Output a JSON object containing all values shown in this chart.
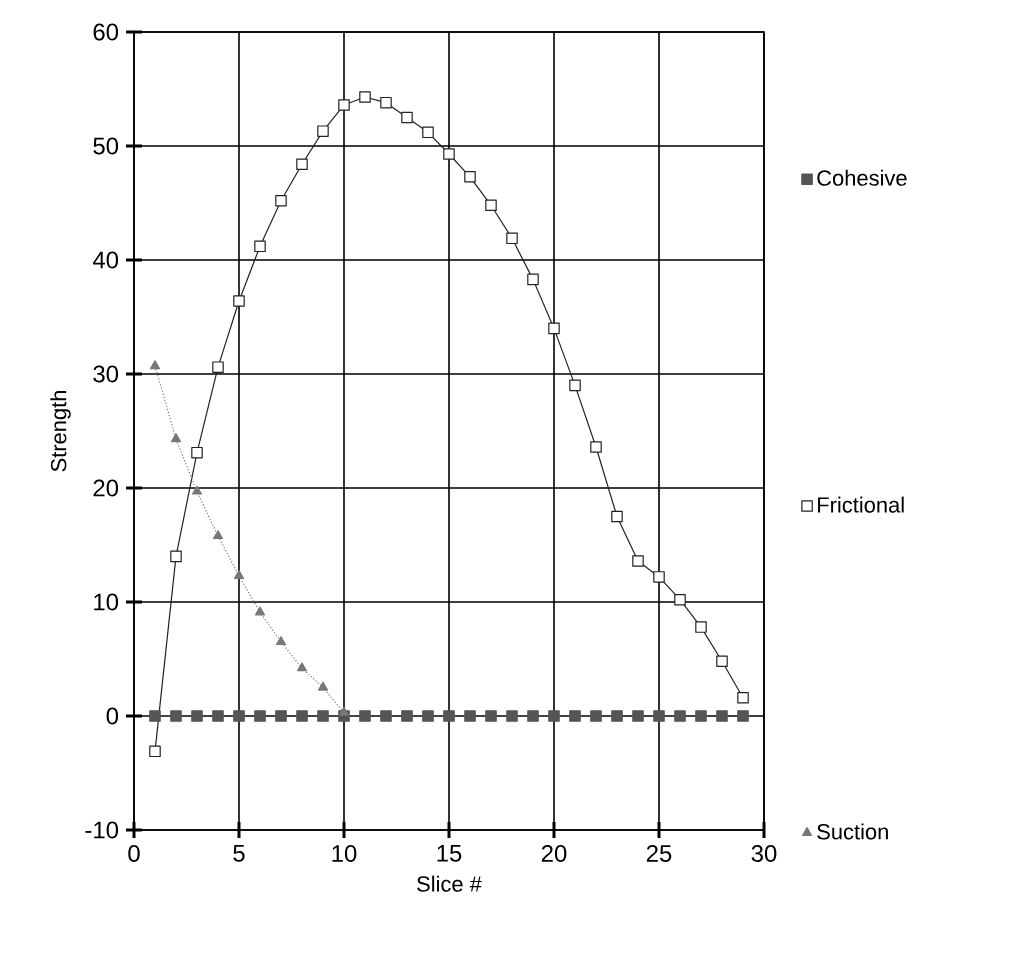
{
  "chart_data": {
    "type": "line",
    "xlabel": "Slice #",
    "ylabel": "Strength",
    "x": [
      1,
      2,
      3,
      4,
      5,
      6,
      7,
      8,
      9,
      10,
      11,
      12,
      13,
      14,
      15,
      16,
      17,
      18,
      19,
      20,
      21,
      22,
      23,
      24,
      25,
      26,
      27,
      28,
      29
    ],
    "series": [
      {
        "name": "Cohesive",
        "color": "#555555",
        "marker": "square",
        "line_style": "dotted",
        "values": [
          0,
          0,
          0,
          0,
          0,
          0,
          0,
          0,
          0,
          0,
          0,
          0,
          0,
          0,
          0,
          0,
          0,
          0,
          0,
          0,
          0,
          0,
          0,
          0,
          0,
          0,
          0,
          0,
          0
        ]
      },
      {
        "name": "Frictional",
        "color": "#222222",
        "marker": "square",
        "line_style": "solid",
        "values": [
          -3.1,
          14,
          23.1,
          30.6,
          36.4,
          41.2,
          45.2,
          48.4,
          51.3,
          53.6,
          54.3,
          53.8,
          52.5,
          51.2,
          49.3,
          47.3,
          44.8,
          41.9,
          38.3,
          34,
          29,
          23.6,
          17.5,
          13.6,
          12.2,
          10.2,
          7.8,
          4.8,
          1.6
        ]
      },
      {
        "name": "Suction",
        "color": "#777777",
        "marker": "triangle",
        "line_style": "dotted",
        "values": [
          30.7,
          24.3,
          19.7,
          15.8,
          12.3,
          9.1,
          6.5,
          4.2,
          2.5,
          0.3,
          null,
          null,
          null,
          null,
          null,
          null,
          null,
          null,
          null,
          null,
          null,
          null,
          null,
          null,
          null,
          null,
          null,
          null,
          null
        ]
      }
    ],
    "xlim": [
      0,
      30
    ],
    "xticks": [
      0,
      5,
      10,
      15,
      20,
      25,
      30
    ],
    "ylim": [
      -10,
      60
    ],
    "yticks": [
      -10,
      0,
      10,
      20,
      30,
      40,
      50,
      60
    ],
    "grid": true,
    "legend": "right"
  }
}
